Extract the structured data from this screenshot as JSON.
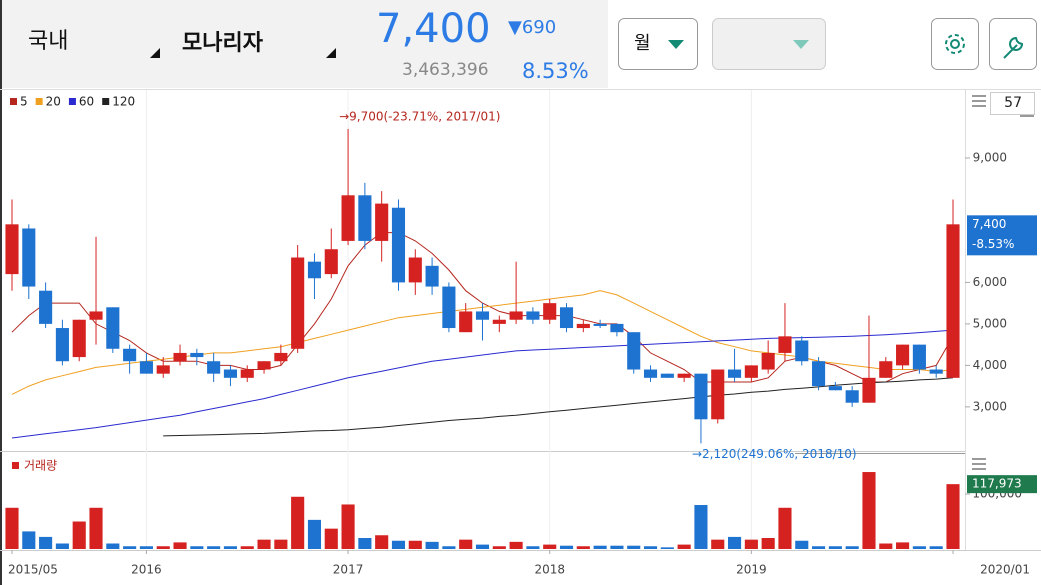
{
  "header": {
    "market": "국내",
    "name": "모나리자",
    "price": "7,400",
    "change": "▼690",
    "volume": "3,463,396",
    "rate": "8.53%",
    "period": "월",
    "count": "57"
  },
  "chart_data": [
    {
      "type": "candlestick",
      "x": [
        "2015/05",
        "2015/06",
        "2015/07",
        "2015/08",
        "2015/09",
        "2015/10",
        "2015/11",
        "2015/12",
        "2016/01",
        "2016/02",
        "2016/03",
        "2016/04",
        "2016/05",
        "2016/06",
        "2016/07",
        "2016/08",
        "2016/09",
        "2016/10",
        "2016/11",
        "2016/12",
        "2017/01",
        "2017/02",
        "2017/03",
        "2017/04",
        "2017/05",
        "2017/06",
        "2017/07",
        "2017/08",
        "2017/09",
        "2017/10",
        "2017/11",
        "2017/12",
        "2018/01",
        "2018/02",
        "2018/03",
        "2018/04",
        "2018/05",
        "2018/06",
        "2018/07",
        "2018/08",
        "2018/09",
        "2018/10",
        "2018/11",
        "2018/12",
        "2019/01",
        "2019/02",
        "2019/03",
        "2019/04",
        "2019/05",
        "2019/06",
        "2019/07",
        "2019/08",
        "2019/09",
        "2019/10",
        "2019/11",
        "2019/12",
        "2020/01"
      ],
      "open": [
        6200,
        7300,
        5800,
        4900,
        4200,
        5100,
        5400,
        4400,
        4100,
        3800,
        4100,
        4300,
        4100,
        3900,
        3700,
        3900,
        4100,
        4400,
        6500,
        6200,
        7000,
        8100,
        7000,
        7800,
        6000,
        6400,
        5900,
        4800,
        5300,
        5000,
        5100,
        5300,
        5100,
        5400,
        4900,
        5000,
        5000,
        4800,
        3900,
        3800,
        3700,
        3800,
        2700,
        3900,
        3700,
        3900,
        4300,
        4600,
        4100,
        3500,
        3400,
        3100,
        3700,
        4000,
        4500,
        3900,
        3700
      ],
      "high": [
        8000,
        7400,
        6000,
        5100,
        5100,
        7100,
        5400,
        4500,
        4300,
        4200,
        4500,
        4400,
        4300,
        4000,
        4000,
        4100,
        4500,
        6900,
        6700,
        7300,
        9700,
        8400,
        8200,
        8000,
        6800,
        6600,
        6000,
        5500,
        5500,
        5200,
        6500,
        5400,
        5600,
        5500,
        5100,
        5100,
        5000,
        4800,
        4000,
        3800,
        3800,
        3800,
        3900,
        4400,
        4000,
        4600,
        5500,
        4700,
        4200,
        3600,
        3500,
        5200,
        4200,
        4500,
        4500,
        4000,
        8000
      ],
      "low": [
        5800,
        5600,
        4900,
        4000,
        4100,
        4500,
        4300,
        3800,
        3800,
        3700,
        4000,
        4000,
        3600,
        3500,
        3600,
        3800,
        4000,
        4300,
        5600,
        6100,
        6900,
        6800,
        6500,
        5800,
        5700,
        5700,
        4800,
        4800,
        4600,
        4800,
        5000,
        5000,
        5000,
        4800,
        4800,
        4900,
        4700,
        3800,
        3600,
        3700,
        3600,
        2120,
        2600,
        3600,
        3600,
        3800,
        4100,
        4000,
        3400,
        3400,
        3000,
        3100,
        3700,
        3900,
        3800,
        3700,
        3700
      ],
      "close": [
        7400,
        5900,
        5000,
        4100,
        5100,
        5300,
        4400,
        4100,
        3800,
        4000,
        4300,
        4200,
        3800,
        3700,
        3900,
        4100,
        4300,
        6600,
        6100,
        6800,
        8100,
        7000,
        7900,
        6000,
        6600,
        5900,
        4900,
        5300,
        5100,
        5100,
        5300,
        5100,
        5500,
        4900,
        5000,
        4950,
        4800,
        3900,
        3700,
        3700,
        3800,
        2700,
        3900,
        3700,
        4000,
        4300,
        4700,
        4100,
        3500,
        3400,
        3100,
        3700,
        4100,
        4500,
        3900,
        3800,
        7400
      ],
      "up_color": "#d5211f",
      "down_color": "#1e73d0",
      "series": [
        {
          "name": "5",
          "color": "#b5261e",
          "values": [
            4800,
            5200,
            5500,
            5500,
            5500,
            5000,
            4800,
            4600,
            4300,
            4100,
            4100,
            4100,
            4000,
            4000,
            3900,
            3900,
            4000,
            4500,
            5000,
            5600,
            6400,
            6900,
            7200,
            7200,
            7000,
            6700,
            6300,
            5800,
            5500,
            5300,
            5200,
            5200,
            5200,
            5200,
            5100,
            5000,
            5000,
            4700,
            4300,
            4100,
            3900,
            3600,
            3600,
            3600,
            3600,
            3700,
            4100,
            4200,
            4100,
            4000,
            3800,
            3600,
            3600,
            3800,
            3900,
            4000,
            4700
          ]
        },
        {
          "name": "20",
          "color": "#f0a020",
          "values": [
            3300,
            3500,
            3650,
            3750,
            3850,
            3950,
            4000,
            4050,
            4100,
            4150,
            4200,
            4250,
            4300,
            4300,
            4350,
            4400,
            4450,
            4550,
            4650,
            4750,
            4850,
            4950,
            5050,
            5150,
            5200,
            5250,
            5300,
            5350,
            5400,
            5450,
            5500,
            5550,
            5600,
            5650,
            5700,
            5800,
            5700,
            5500,
            5300,
            5100,
            4900,
            4700,
            4550,
            4450,
            4350,
            4300,
            4250,
            4200,
            4100,
            4050,
            4000,
            3950,
            3900,
            3900,
            3900,
            3850,
            3900
          ]
        },
        {
          "name": "60",
          "color": "#2a2ad0",
          "values": [
            2250,
            2300,
            2350,
            2400,
            2450,
            2500,
            2560,
            2620,
            2680,
            2740,
            2800,
            2880,
            2960,
            3040,
            3120,
            3200,
            3300,
            3400,
            3500,
            3600,
            3700,
            3780,
            3860,
            3940,
            4020,
            4100,
            4150,
            4200,
            4250,
            4300,
            4350,
            4370,
            4390,
            4410,
            4430,
            4450,
            4470,
            4490,
            4510,
            4530,
            4550,
            4570,
            4590,
            4610,
            4630,
            4650,
            4660,
            4670,
            4680,
            4690,
            4700,
            4720,
            4740,
            4760,
            4790,
            4820,
            4850
          ]
        },
        {
          "name": "120",
          "color": "#222222",
          "values": [
            null,
            null,
            null,
            null,
            null,
            null,
            null,
            null,
            null,
            2300,
            2310,
            2320,
            2330,
            2340,
            2350,
            2360,
            2380,
            2400,
            2420,
            2430,
            2450,
            2480,
            2510,
            2550,
            2590,
            2630,
            2670,
            2700,
            2730,
            2770,
            2800,
            2840,
            2880,
            2920,
            2960,
            3000,
            3040,
            3080,
            3120,
            3160,
            3200,
            3240,
            3280,
            3310,
            3350,
            3380,
            3420,
            3450,
            3480,
            3520,
            3550,
            3580,
            3600,
            3620,
            3650,
            3670,
            3700
          ]
        }
      ],
      "ylim": [
        1960,
        10590
      ],
      "yticks": [
        {
          "value": 3000,
          "label": "3,000"
        },
        {
          "value": 4000,
          "label": "4,000"
        },
        {
          "value": 5000,
          "label": "5,000"
        },
        {
          "value": 6000,
          "label": "6,000"
        },
        {
          "value": 9000,
          "label": "9,000"
        }
      ],
      "xticks": [
        {
          "value": "2015/05",
          "label": "2015/05"
        },
        {
          "value": "2016/01",
          "label": "2016"
        },
        {
          "value": "2017/01",
          "label": "2017"
        },
        {
          "value": "2018/01",
          "label": "2018"
        },
        {
          "value": "2019/01",
          "label": "2019"
        },
        {
          "value": "2020/01",
          "label": "2020/01"
        }
      ],
      "grid": "x",
      "annotations": [
        {
          "text": "→9,700(-23.71%, 2017/01)",
          "x": "2017/01",
          "value": 9700,
          "color": "#b5261e",
          "place": "above"
        },
        {
          "text": "→2,120(249.06%, 2018/10)",
          "x": "2018/10",
          "value": 2120,
          "color": "#1e73d0",
          "place": "below"
        }
      ],
      "current": {
        "value": 7400,
        "label": "7,400",
        "change_label": "-8.53%",
        "color": "#1e73d0"
      }
    },
    {
      "type": "bar",
      "title": "거래량",
      "color": "#d5211f",
      "values": [
        75000,
        32000,
        22000,
        10000,
        50000,
        75000,
        10000,
        5000,
        5000,
        5000,
        12000,
        5000,
        5000,
        5000,
        5000,
        17000,
        17000,
        95000,
        53000,
        37000,
        81000,
        20000,
        25000,
        15000,
        15000,
        13000,
        5000,
        17000,
        8000,
        5000,
        13000,
        5000,
        8000,
        6000,
        5000,
        6000,
        6000,
        6000,
        5000,
        3000,
        8000,
        80000,
        17000,
        22000,
        17000,
        20000,
        75000,
        15000,
        5000,
        5000,
        5000,
        140000,
        10000,
        12000,
        5000,
        5000,
        117973
      ],
      "ylim": [
        0,
        171000
      ],
      "yticks": [
        {
          "value": 100000,
          "label": "100,000"
        }
      ],
      "current": {
        "value": 117973,
        "label": "117,973",
        "color": "#1f7a4d"
      }
    }
  ]
}
